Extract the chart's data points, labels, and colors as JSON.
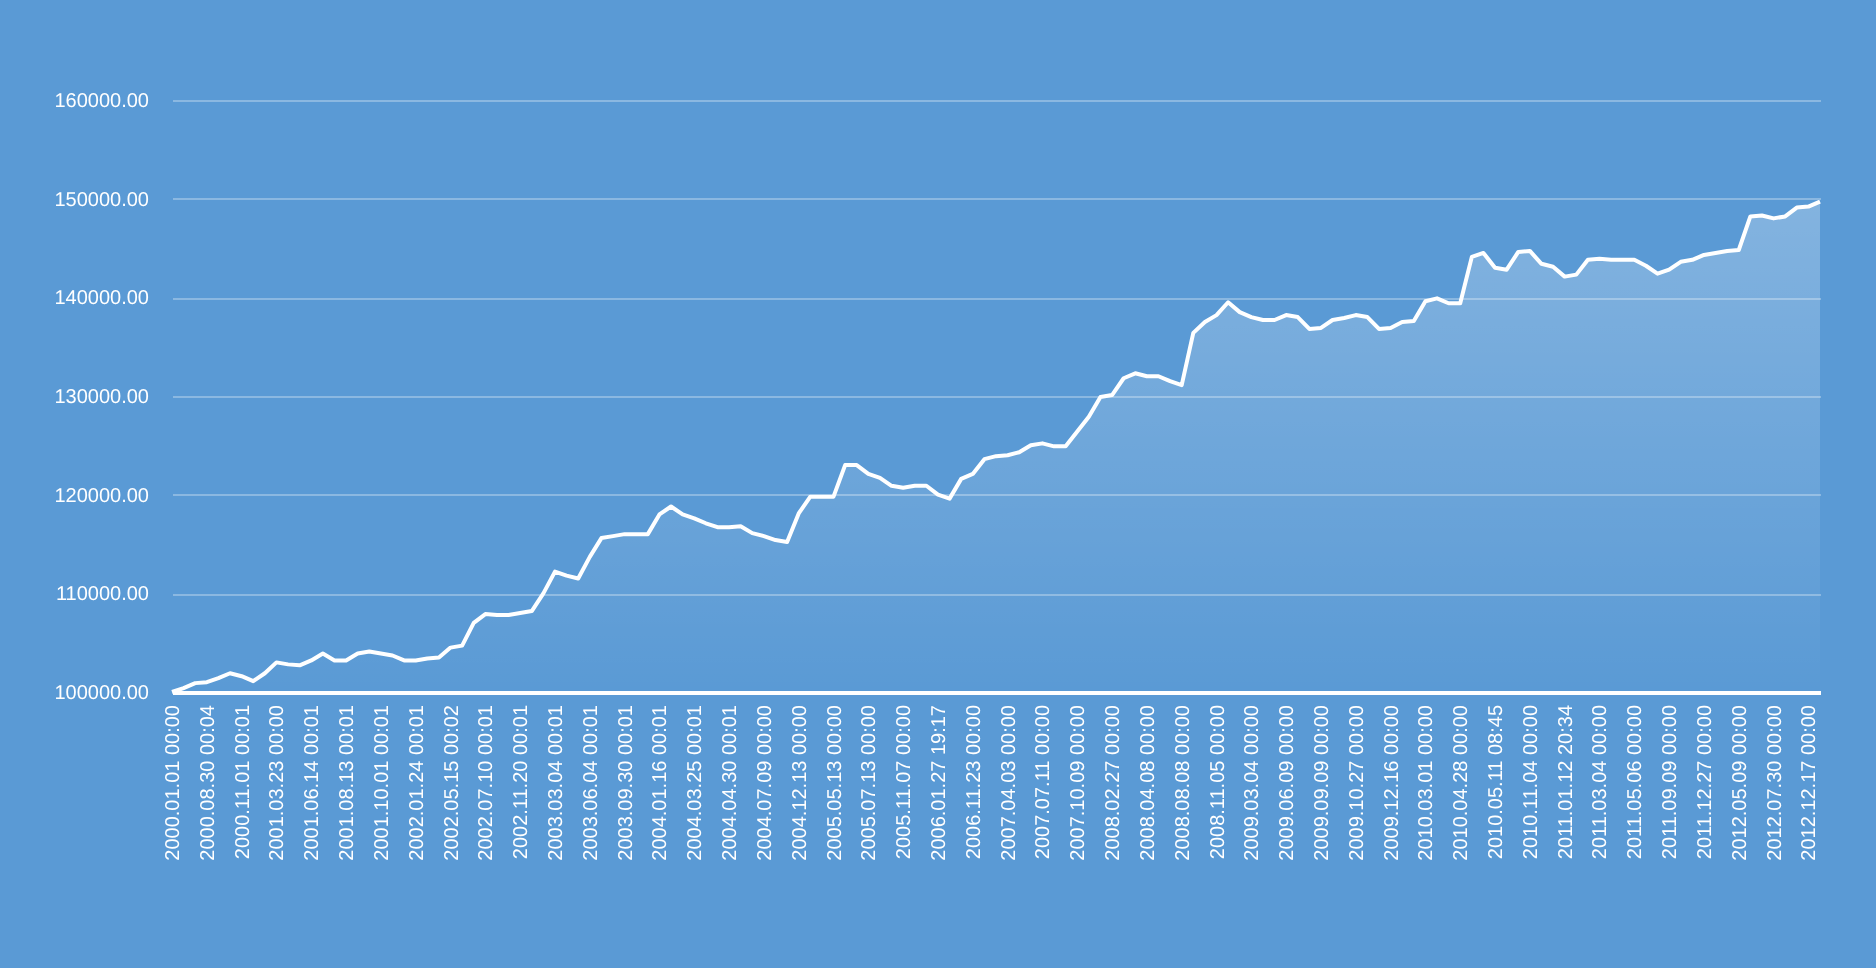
{
  "chart_data": {
    "type": "area",
    "categories": [
      "2000.01.01 00:00",
      null,
      null,
      "2000.08.30 00:04",
      null,
      null,
      "2000.11.01 00:01",
      null,
      null,
      "2001.03.23 00:00",
      null,
      null,
      "2001.06.14 00:01",
      null,
      null,
      "2001.08.13 00:01",
      null,
      null,
      "2001.10.01 00:01",
      null,
      null,
      "2002.01.24 00:01",
      null,
      null,
      "2002.05.15 00:02",
      null,
      null,
      "2002.07.10 00:01",
      null,
      null,
      "2002.11.20 00:01",
      null,
      null,
      "2003.03.04 00:01",
      null,
      null,
      "2003.06.04 00:01",
      null,
      null,
      "2003.09.30 00:01",
      null,
      null,
      "2004.01.16 00:01",
      null,
      null,
      "2004.03.25 00:01",
      null,
      null,
      "2004.04.30 00:01",
      null,
      null,
      "2004.07.09 00:00",
      null,
      null,
      "2004.12.13 00:00",
      null,
      null,
      "2005.05.13 00:00",
      null,
      null,
      "2005.07.13 00:00",
      null,
      null,
      "2005.11.07 00:00",
      null,
      null,
      "2006.01.27 19:17",
      null,
      null,
      "2006.11.23 00:00",
      null,
      null,
      "2007.04.03 00:00",
      null,
      null,
      "2007.07.11 00:00",
      null,
      null,
      "2007.10.09 00:00",
      null,
      null,
      "2008.02.27 00:00",
      null,
      null,
      "2008.04.08 00:00",
      null,
      null,
      "2008.08.08 00:00",
      null,
      null,
      "2008.11.05 00:00",
      null,
      null,
      "2009.03.04 00:00",
      null,
      null,
      "2009.06.09 00:00",
      null,
      null,
      "2009.09.09 00:00",
      null,
      null,
      "2009.10.27 00:00",
      null,
      null,
      "2009.12.16 00:00",
      null,
      null,
      "2010.03.01 00:00",
      null,
      null,
      "2010.04.28 00:00",
      null,
      null,
      "2010.05.11 08:45",
      null,
      null,
      "2010.11.04 00:00",
      null,
      null,
      "2011.01.12 20:34",
      null,
      null,
      "2011.03.04 00:00",
      null,
      null,
      "2011.05.06 00:00",
      null,
      null,
      "2011.09.09 00:00",
      null,
      null,
      "2011.12.27 00:00",
      null,
      null,
      "2012.05.09 00:00",
      null,
      null,
      "2012.07.30 00:00",
      null,
      null,
      "2012.12.17 00:00",
      null
    ],
    "series": [
      {
        "color": "#ffffff",
        "values": [
          100000,
          100400,
          100900,
          101000,
          101400,
          101900,
          101600,
          101100,
          101900,
          103000,
          102800,
          102700,
          103200,
          103900,
          103200,
          103200,
          103900,
          104100,
          103900,
          103700,
          103200,
          103200,
          103400,
          103500,
          104500,
          104700,
          107000,
          107900,
          107800,
          107800,
          108000,
          108200,
          110000,
          112200,
          111800,
          111500,
          113700,
          115600,
          115800,
          116000,
          116000,
          116000,
          118000,
          118800,
          118000,
          117600,
          117100,
          116700,
          116700,
          116800,
          116100,
          115800,
          115400,
          115200,
          118100,
          119800,
          119800,
          119800,
          123000,
          123000,
          122100,
          121700,
          120900,
          120700,
          120900,
          120900,
          120000,
          119600,
          121600,
          122100,
          123600,
          123900,
          124000,
          124300,
          125000,
          125200,
          124900,
          124900,
          126400,
          127900,
          129900,
          130100,
          131800,
          132300,
          132000,
          132000,
          131500,
          131100,
          136400,
          137500,
          138200,
          139500,
          138500,
          138000,
          137700,
          137700,
          138200,
          138000,
          136800,
          136900,
          137700,
          137900,
          138200,
          138000,
          136800,
          136900,
          137500,
          137600,
          139600,
          139900,
          139400,
          139400,
          144100,
          144500,
          143000,
          142800,
          144600,
          144700,
          143400,
          143100,
          142100,
          142300,
          143800,
          143900,
          143800,
          143800,
          143800,
          143200,
          142400,
          142800,
          143600,
          143800,
          144300,
          144500,
          144700,
          144800,
          148200,
          148300,
          148000,
          148200,
          149100,
          149200,
          149700
        ]
      }
    ],
    "ylim": [
      100000,
      160000
    ],
    "yticks": [
      {
        "value": 100000,
        "label": "100000.00"
      },
      {
        "value": 110000,
        "label": "110000.00"
      },
      {
        "value": 120000,
        "label": "120000.00"
      },
      {
        "value": 130000,
        "label": "130000.00"
      },
      {
        "value": 140000,
        "label": "140000.00"
      },
      {
        "value": 150000,
        "label": "150000.00"
      },
      {
        "value": 160000,
        "label": "160000.00"
      }
    ],
    "grid": "y"
  }
}
